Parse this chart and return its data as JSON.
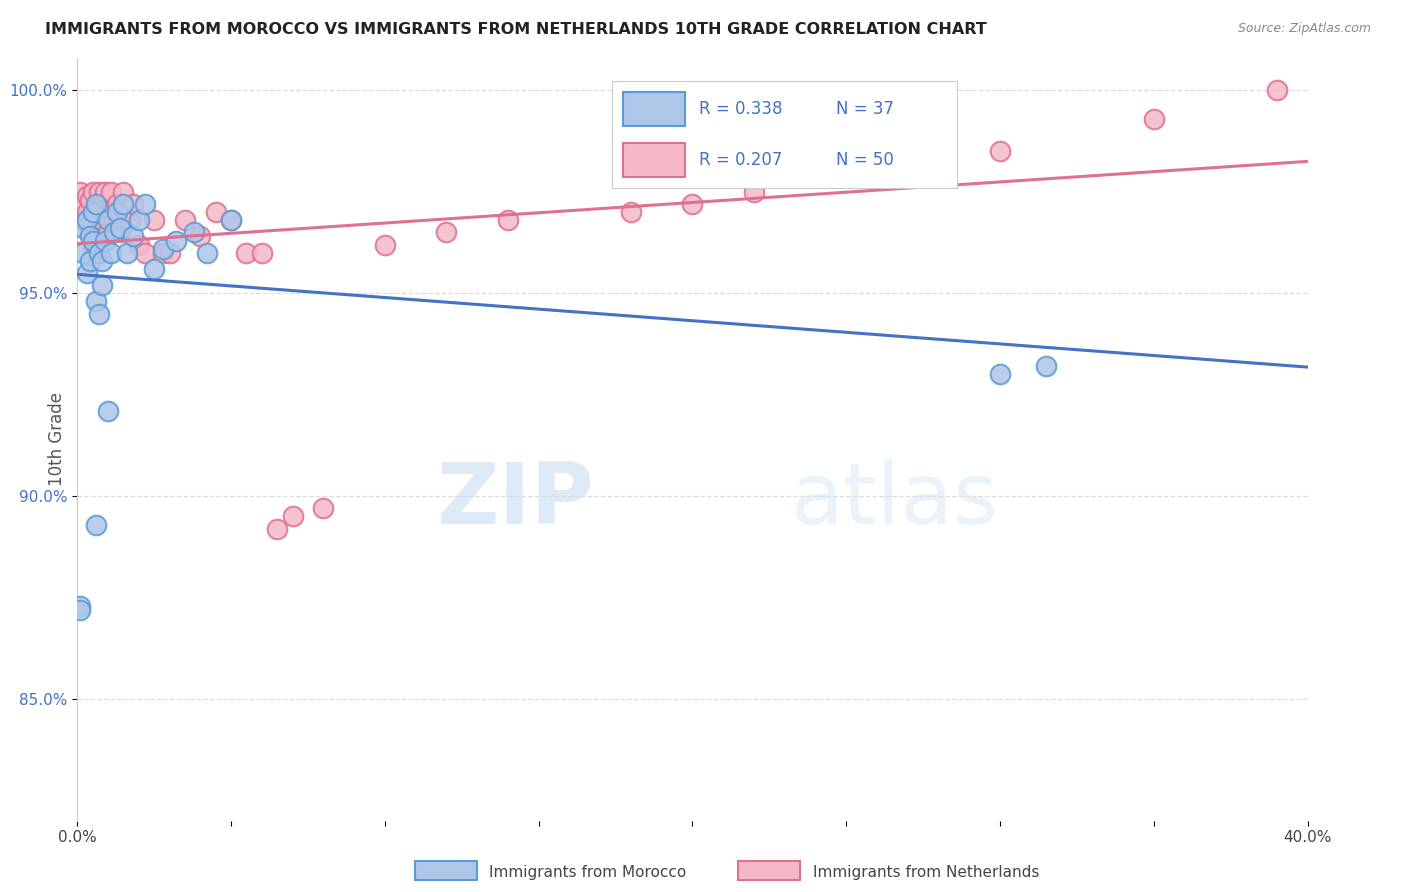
{
  "title": "IMMIGRANTS FROM MOROCCO VS IMMIGRANTS FROM NETHERLANDS 10TH GRADE CORRELATION CHART",
  "source": "Source: ZipAtlas.com",
  "ylabel": "10th Grade",
  "x_min": 0.0,
  "x_max": 0.4,
  "y_min": 0.82,
  "y_max": 1.008,
  "x_ticks": [
    0.0,
    0.05,
    0.1,
    0.15,
    0.2,
    0.25,
    0.3,
    0.35,
    0.4
  ],
  "x_tick_labels": [
    "0.0%",
    "",
    "",
    "",
    "",
    "",
    "",
    "",
    "40.0%"
  ],
  "y_ticks": [
    0.85,
    0.9,
    0.95,
    1.0
  ],
  "y_tick_labels": [
    "85.0%",
    "90.0%",
    "95.0%",
    "100.0%"
  ],
  "morocco_color": "#aec6e8",
  "morocco_edge": "#5b9bd5",
  "netherlands_color": "#f4b8c8",
  "netherlands_edge": "#e07090",
  "morocco_R": 0.338,
  "morocco_N": 37,
  "netherlands_R": 0.207,
  "netherlands_N": 50,
  "trend_blue": "#4472c4",
  "trend_pink": "#e07090",
  "watermark_zip": "ZIP",
  "watermark_atlas": "atlas",
  "morocco_x": [
    0.001,
    0.001,
    0.002,
    0.002,
    0.003,
    0.003,
    0.004,
    0.004,
    0.005,
    0.005,
    0.006,
    0.006,
    0.007,
    0.007,
    0.008,
    0.008,
    0.009,
    0.01,
    0.011,
    0.012,
    0.013,
    0.014,
    0.015,
    0.016,
    0.018,
    0.02,
    0.022,
    0.025,
    0.028,
    0.032,
    0.038,
    0.042,
    0.05,
    0.3,
    0.315,
    0.01,
    0.006
  ],
  "morocco_y": [
    0.873,
    0.872,
    0.966,
    0.96,
    0.968,
    0.955,
    0.964,
    0.958,
    0.97,
    0.963,
    0.972,
    0.948,
    0.96,
    0.945,
    0.952,
    0.958,
    0.963,
    0.968,
    0.96,
    0.965,
    0.97,
    0.966,
    0.972,
    0.96,
    0.964,
    0.968,
    0.972,
    0.956,
    0.961,
    0.963,
    0.965,
    0.96,
    0.968,
    0.93,
    0.932,
    0.921,
    0.893
  ],
  "netherlands_x": [
    0.001,
    0.002,
    0.002,
    0.003,
    0.003,
    0.004,
    0.004,
    0.005,
    0.005,
    0.006,
    0.006,
    0.007,
    0.007,
    0.008,
    0.008,
    0.009,
    0.01,
    0.01,
    0.011,
    0.012,
    0.013,
    0.014,
    0.015,
    0.016,
    0.017,
    0.018,
    0.02,
    0.022,
    0.025,
    0.028,
    0.03,
    0.035,
    0.04,
    0.045,
    0.05,
    0.055,
    0.06,
    0.065,
    0.07,
    0.08,
    0.1,
    0.12,
    0.14,
    0.18,
    0.2,
    0.22,
    0.25,
    0.3,
    0.35,
    0.39
  ],
  "netherlands_y": [
    0.975,
    0.972,
    0.968,
    0.974,
    0.97,
    0.973,
    0.966,
    0.975,
    0.962,
    0.968,
    0.962,
    0.96,
    0.975,
    0.968,
    0.972,
    0.975,
    0.97,
    0.965,
    0.975,
    0.968,
    0.972,
    0.965,
    0.975,
    0.97,
    0.968,
    0.972,
    0.962,
    0.96,
    0.968,
    0.96,
    0.96,
    0.968,
    0.964,
    0.97,
    0.968,
    0.96,
    0.96,
    0.892,
    0.895,
    0.897,
    0.962,
    0.965,
    0.968,
    0.97,
    0.972,
    0.975,
    0.98,
    0.985,
    0.993,
    1.0
  ]
}
